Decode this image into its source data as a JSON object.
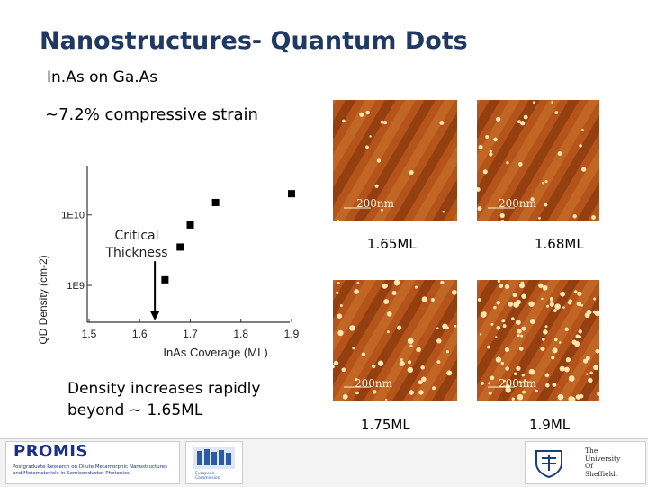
{
  "slide": {
    "title": "Nanostructures- Quantum Dots",
    "subtitle": "In.As on Ga.As",
    "strain": "~7.2% compressive strain",
    "density_note": "Density increases rapidly beyond ~ 1.65ML"
  },
  "afm_images": [
    {
      "scale": "200nm",
      "coverage": "1.65ML"
    },
    {
      "scale": "200nm",
      "coverage": "1.68ML"
    },
    {
      "scale": "200nm",
      "coverage": "1.75ML"
    },
    {
      "scale": "200nm",
      "coverage": "1.9ML"
    }
  ],
  "chart_data": {
    "type": "scatter",
    "xlabel": "InAs Coverage (ML)",
    "ylabel": "QD Density (cm-2)",
    "x_ticks": [
      "1.5",
      "1.6",
      "1.7",
      "1.8",
      "1.9"
    ],
    "y_ticks": [
      "1E9",
      "1E10"
    ],
    "xlim": [
      1.5,
      1.9
    ],
    "ylog": true,
    "ylim": [
      300000000,
      50000000000
    ],
    "annotation": "Critical Thickness",
    "series": [
      {
        "points": [
          [
            1.65,
            1200000000
          ],
          [
            1.68,
            3500000000
          ],
          [
            1.7,
            7200000000
          ],
          [
            1.75,
            15000000000
          ],
          [
            1.9,
            20000000000
          ]
        ]
      }
    ]
  },
  "footer": {
    "promis_name": "PROMIS",
    "promis_text": "Postgraduate Research on Dilute Metamorphic Nanostructures and Metamaterials in Semiconductor Photonics",
    "eu_text": "European Commission",
    "university_text": [
      "The",
      "University",
      "Of",
      "Sheffield."
    ]
  },
  "colors": {
    "title": "#1f3864",
    "afm_dark": "#5a1a00",
    "afm_mid": "#b4541a",
    "afm_light": "#ffe6b0"
  }
}
